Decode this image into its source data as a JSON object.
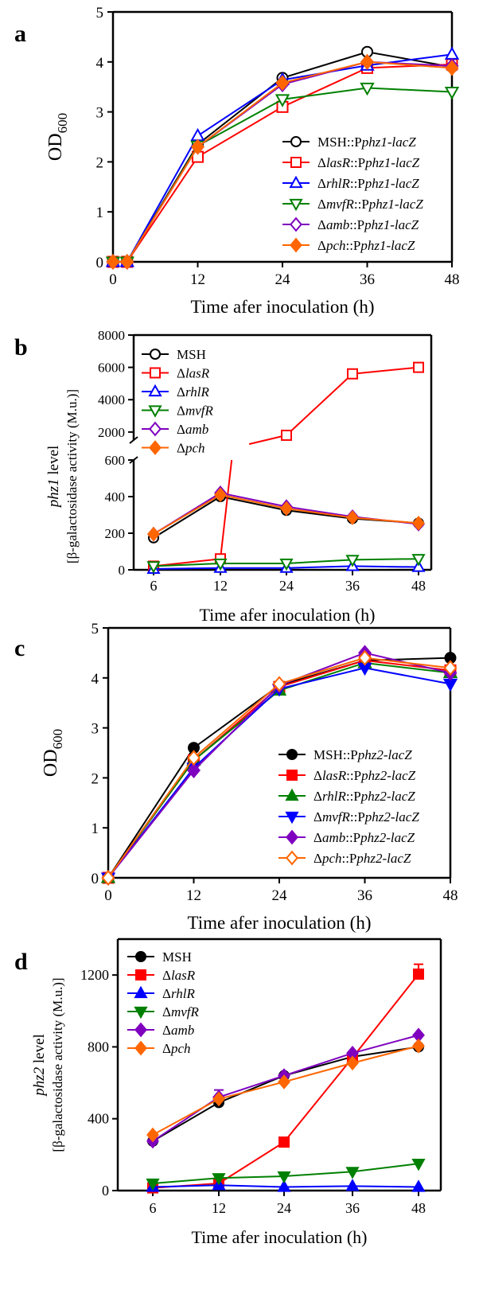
{
  "chart_data": [
    {
      "panel": "a",
      "type": "line",
      "ylabel": "OD",
      "ylabel_sub": "600",
      "xlabel": "Time afer inoculation (h)",
      "xticks": [
        "0",
        "12",
        "24",
        "36",
        "48"
      ],
      "yticks": [
        "0",
        "1",
        "2",
        "3",
        "4",
        "5"
      ],
      "xlim": [
        0,
        48
      ],
      "ylim": [
        0,
        5
      ],
      "legend_position": "bottom-right",
      "series": [
        {
          "name": [
            "MSH::P",
            "phz1-lacZ"
          ],
          "color": "#000000",
          "marker": "circle",
          "filled": false,
          "x": [
            0,
            2,
            12,
            24,
            36,
            48
          ],
          "y": [
            0,
            0,
            2.35,
            3.68,
            4.2,
            3.9
          ]
        },
        {
          "name": [
            "Δ",
            "lasR",
            "::P",
            "phz1-lacZ"
          ],
          "color": "#ff0000",
          "marker": "square",
          "filled": false,
          "x": [
            0,
            2,
            12,
            24,
            36,
            48
          ],
          "y": [
            0,
            0,
            2.1,
            3.1,
            3.88,
            3.95
          ]
        },
        {
          "name": [
            "Δ",
            "rhlR",
            "::P",
            "phz1-lacZ"
          ],
          "color": "#0000ff",
          "marker": "triangle-up",
          "filled": false,
          "x": [
            0,
            2,
            12,
            24,
            36,
            48
          ],
          "y": [
            0,
            0,
            2.52,
            3.64,
            3.93,
            4.15
          ]
        },
        {
          "name": [
            "Δ",
            "mvfR",
            "::P",
            "phz1-lacZ"
          ],
          "color": "#008000",
          "marker": "triangle-down",
          "filled": false,
          "x": [
            0,
            2,
            12,
            24,
            36,
            48
          ],
          "y": [
            0,
            0,
            2.32,
            3.25,
            3.48,
            3.4
          ]
        },
        {
          "name": [
            "Δ",
            "amb",
            "::P",
            "phz1-lacZ"
          ],
          "color": "#7f00bf",
          "marker": "diamond",
          "filled": false,
          "x": [
            0,
            2,
            12,
            24,
            36,
            48
          ],
          "y": [
            0,
            0,
            2.3,
            3.55,
            4.0,
            3.92
          ]
        },
        {
          "name": [
            "Δ",
            "pch",
            "::P",
            "phz1-lacZ"
          ],
          "color": "#ff6600",
          "marker": "diamond",
          "filled": true,
          "x": [
            0,
            2,
            12,
            24,
            36,
            48
          ],
          "y": [
            0,
            0,
            2.3,
            3.58,
            4.0,
            3.88
          ]
        }
      ]
    },
    {
      "panel": "b",
      "type": "line",
      "ylabel_line1": [
        "phz1",
        " level"
      ],
      "ylabel_line2": "[β-galactosidase activity (M.u.)]",
      "xlabel": "Time afer inoculation (h)",
      "xticks": [
        "6",
        "12",
        "24",
        "36",
        "48"
      ],
      "yticks_lower": [
        "0",
        "200",
        "400",
        "600"
      ],
      "yticks_upper": [
        "2000",
        "4000",
        "6000",
        "8000"
      ],
      "ylim_lower": [
        0,
        600
      ],
      "ylim_upper": [
        1500,
        8000
      ],
      "y_axis_break": true,
      "legend_position": "top-left",
      "series": [
        {
          "name": [
            "MSH"
          ],
          "color": "#000000",
          "marker": "circle",
          "filled": false,
          "x": [
            6,
            12,
            24,
            36,
            48
          ],
          "y": [
            175,
            400,
            325,
            280,
            255
          ]
        },
        {
          "name": [
            "Δ",
            "lasR"
          ],
          "color": "#ff0000",
          "marker": "square",
          "filled": false,
          "x": [
            6,
            12,
            24,
            36,
            48
          ],
          "y": [
            20,
            60,
            1800,
            5600,
            6000
          ]
        },
        {
          "name": [
            "Δ",
            "rhlR"
          ],
          "color": "#0000ff",
          "marker": "triangle-up",
          "filled": false,
          "x": [
            6,
            12,
            24,
            36,
            48
          ],
          "y": [
            5,
            10,
            10,
            20,
            15
          ]
        },
        {
          "name": [
            "Δ",
            "mvfR"
          ],
          "color": "#008000",
          "marker": "triangle-down",
          "filled": false,
          "x": [
            6,
            12,
            24,
            36,
            48
          ],
          "y": [
            20,
            35,
            35,
            55,
            60
          ]
        },
        {
          "name": [
            "Δ",
            "amb"
          ],
          "color": "#7f00bf",
          "marker": "diamond",
          "filled": false,
          "x": [
            6,
            12,
            24,
            36,
            48
          ],
          "y": [
            195,
            420,
            345,
            290,
            250
          ]
        },
        {
          "name": [
            "Δ",
            "pch"
          ],
          "color": "#ff6600",
          "marker": "diamond",
          "filled": true,
          "x": [
            6,
            12,
            24,
            36,
            48
          ],
          "y": [
            195,
            410,
            335,
            285,
            255
          ]
        }
      ]
    },
    {
      "panel": "c",
      "type": "line",
      "ylabel": "OD",
      "ylabel_sub": "600",
      "xlabel": "Time afer inoculation (h)",
      "xticks": [
        "0",
        "12",
        "24",
        "36",
        "48"
      ],
      "yticks": [
        "0",
        "1",
        "2",
        "3",
        "4",
        "5"
      ],
      "xlim": [
        0,
        48
      ],
      "ylim": [
        0,
        5
      ],
      "legend_position": "bottom-right",
      "series": [
        {
          "name": [
            "MSH::P",
            "phz2-lacZ"
          ],
          "color": "#000000",
          "marker": "circle",
          "filled": true,
          "x": [
            0,
            12,
            24,
            36,
            48
          ],
          "y": [
            0,
            2.6,
            3.85,
            4.35,
            4.4
          ]
        },
        {
          "name": [
            "Δ",
            "lasR",
            "::P",
            "phz2-lacZ"
          ],
          "color": "#ff0000",
          "marker": "square",
          "filled": true,
          "x": [
            0,
            12,
            24,
            36,
            48
          ],
          "y": [
            0,
            2.35,
            3.82,
            4.35,
            4.15
          ]
        },
        {
          "name": [
            "Δ",
            "rhlR",
            "::P",
            "phz2-lacZ"
          ],
          "color": "#008000",
          "marker": "triangle-up",
          "filled": true,
          "x": [
            0,
            12,
            24,
            36,
            48
          ],
          "y": [
            0,
            2.35,
            3.75,
            4.3,
            4.1
          ]
        },
        {
          "name": [
            "Δ",
            "mvfR",
            "::P",
            "phz2-lacZ"
          ],
          "color": "#0000ff",
          "marker": "triangle-down",
          "filled": true,
          "x": [
            0,
            12,
            24,
            36,
            48
          ],
          "y": [
            0,
            2.2,
            3.78,
            4.2,
            3.88
          ]
        },
        {
          "name": [
            "Δ",
            "amb",
            "::P",
            "phz2-lacZ"
          ],
          "color": "#7f00bf",
          "marker": "diamond",
          "filled": true,
          "x": [
            0,
            12,
            24,
            36,
            48
          ],
          "y": [
            0,
            2.15,
            3.85,
            4.5,
            4.1
          ]
        },
        {
          "name": [
            "Δ",
            "pch",
            "::P",
            "phz2-lacZ"
          ],
          "color": "#ff6600",
          "marker": "diamond",
          "filled": false,
          "x": [
            0,
            12,
            24,
            36,
            48
          ],
          "y": [
            0,
            2.4,
            3.88,
            4.4,
            4.2
          ]
        }
      ]
    },
    {
      "panel": "d",
      "type": "line",
      "ylabel_line1": [
        "phz2",
        " level"
      ],
      "ylabel_line2": "[β-galactosidase activity (M.u.)]",
      "xlabel": "Time afer inoculation (h)",
      "xticks": [
        "6",
        "12",
        "24",
        "36",
        "48"
      ],
      "yticks": [
        "0",
        "400",
        "800",
        "1200"
      ],
      "xlim": [
        0,
        52
      ],
      "ylim": [
        0,
        1400
      ],
      "legend_position": "top-left",
      "series": [
        {
          "name": [
            "MSH"
          ],
          "color": "#000000",
          "marker": "circle",
          "filled": true,
          "x": [
            6,
            12,
            24,
            36,
            48
          ],
          "y": [
            275,
            490,
            640,
            745,
            800
          ]
        },
        {
          "name": [
            "Δ",
            "lasR"
          ],
          "color": "#ff0000",
          "marker": "square",
          "filled": true,
          "x": [
            6,
            12,
            24,
            36,
            48
          ],
          "y": [
            15,
            40,
            270,
            740,
            1205
          ],
          "err": [
            0,
            0,
            0,
            0,
            55
          ]
        },
        {
          "name": [
            "Δ",
            "rhlR"
          ],
          "color": "#0000ff",
          "marker": "triangle-up",
          "filled": true,
          "x": [
            6,
            12,
            24,
            36,
            48
          ],
          "y": [
            20,
            30,
            20,
            25,
            20
          ]
        },
        {
          "name": [
            "Δ",
            "mvfR"
          ],
          "color": "#008000",
          "marker": "triangle-down",
          "filled": true,
          "x": [
            6,
            12,
            24,
            36,
            48
          ],
          "y": [
            40,
            70,
            80,
            105,
            150
          ]
        },
        {
          "name": [
            "Δ",
            "amb"
          ],
          "color": "#7f00bf",
          "marker": "diamond",
          "filled": true,
          "x": [
            6,
            12,
            24,
            36,
            48
          ],
          "y": [
            275,
            520,
            640,
            765,
            865
          ],
          "err": [
            0,
            40,
            0,
            0,
            0
          ]
        },
        {
          "name": [
            "Δ",
            "pch"
          ],
          "color": "#ff6600",
          "marker": "diamond",
          "filled": true,
          "x": [
            6,
            12,
            24,
            36,
            48
          ],
          "y": [
            310,
            510,
            605,
            710,
            805
          ]
        }
      ]
    }
  ]
}
